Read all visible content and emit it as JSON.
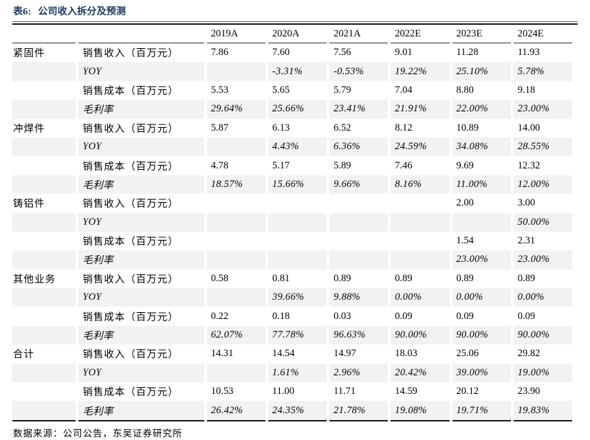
{
  "title": {
    "prefix": "表6:",
    "text": "公司收入拆分及预测",
    "color": "#17365d"
  },
  "footer": {
    "source": "数据来源：公司公告，东吴证券研究所"
  },
  "table": {
    "stripe_color": "#f2f2f2",
    "columns": [
      "2019A",
      "2020A",
      "2021A",
      "2022E",
      "2023E",
      "2024E"
    ],
    "metric_labels": {
      "revenue": "销售收入（百万元）",
      "yoy": "YOY",
      "cost": "销售成本（百万元）",
      "gross_margin": "毛利率"
    },
    "groups": [
      {
        "name": "紧固件",
        "rows": [
          {
            "label": "销售收入（百万元）",
            "italic": false,
            "shaded": false,
            "values": [
              "7.86",
              "7.60",
              "7.56",
              "9.01",
              "11.28",
              "11.93"
            ]
          },
          {
            "label": "YOY",
            "italic": true,
            "shaded": true,
            "values": [
              "",
              "-3.31%",
              "-0.53%",
              "19.22%",
              "25.10%",
              "5.78%"
            ]
          },
          {
            "label": "销售成本（百万元）",
            "italic": false,
            "shaded": false,
            "values": [
              "5.53",
              "5.65",
              "5.79",
              "7.04",
              "8.80",
              "9.18"
            ]
          },
          {
            "label": "毛利率",
            "italic": true,
            "shaded": true,
            "values": [
              "29.64%",
              "25.66%",
              "23.41%",
              "21.91%",
              "22.00%",
              "23.00%"
            ]
          }
        ]
      },
      {
        "name": "冲焊件",
        "rows": [
          {
            "label": "销售收入（百万元）",
            "italic": false,
            "shaded": false,
            "values": [
              "5.87",
              "6.13",
              "6.52",
              "8.12",
              "10.89",
              "14.00"
            ]
          },
          {
            "label": "YOY",
            "italic": true,
            "shaded": true,
            "values": [
              "",
              "4.43%",
              "6.36%",
              "24.59%",
              "34.08%",
              "28.55%"
            ]
          },
          {
            "label": "销售成本（百万元）",
            "italic": false,
            "shaded": false,
            "values": [
              "4.78",
              "5.17",
              "5.89",
              "7.46",
              "9.69",
              "12.32"
            ]
          },
          {
            "label": "毛利率",
            "italic": true,
            "shaded": true,
            "values": [
              "18.57%",
              "15.66%",
              "9.66%",
              "8.16%",
              "11.00%",
              "12.00%"
            ]
          }
        ]
      },
      {
        "name": "铸铝件",
        "rows": [
          {
            "label": "销售收入（百万元）",
            "italic": false,
            "shaded": false,
            "values": [
              "",
              "",
              "",
              "",
              "2.00",
              "3.00"
            ]
          },
          {
            "label": "YOY",
            "italic": true,
            "shaded": true,
            "values": [
              "",
              "",
              "",
              "",
              "",
              "50.00%"
            ]
          },
          {
            "label": "销售成本（百万元）",
            "italic": false,
            "shaded": false,
            "values": [
              "",
              "",
              "",
              "",
              "1.54",
              "2.31"
            ]
          },
          {
            "label": "毛利率",
            "italic": true,
            "shaded": true,
            "values": [
              "",
              "",
              "",
              "",
              "23.00%",
              "23.00%"
            ]
          }
        ]
      },
      {
        "name": "其他业务",
        "rows": [
          {
            "label": "销售收入（百万元）",
            "italic": false,
            "shaded": false,
            "values": [
              "0.58",
              "0.81",
              "0.89",
              "0.89",
              "0.89",
              "0.89"
            ]
          },
          {
            "label": "YOY",
            "italic": true,
            "shaded": true,
            "values": [
              "",
              "39.66%",
              "9.88%",
              "0.00%",
              "0.00%",
              "0.00%"
            ]
          },
          {
            "label": "销售成本（百万元）",
            "italic": false,
            "shaded": false,
            "values": [
              "0.22",
              "0.18",
              "0.03",
              "0.09",
              "0.09",
              "0.09"
            ]
          },
          {
            "label": "毛利率",
            "italic": true,
            "shaded": true,
            "values": [
              "62.07%",
              "77.78%",
              "96.63%",
              "90.00%",
              "90.00%",
              "90.00%"
            ]
          }
        ]
      },
      {
        "name": "合计",
        "rows": [
          {
            "label": "销售收入（百万元）",
            "italic": false,
            "shaded": false,
            "values": [
              "14.31",
              "14.54",
              "14.97",
              "18.03",
              "25.06",
              "29.82"
            ]
          },
          {
            "label": "YOY",
            "italic": true,
            "shaded": true,
            "values": [
              "",
              "1.61%",
              "2.96%",
              "20.42%",
              "39.00%",
              "19.00%"
            ]
          },
          {
            "label": "销售成本（百万元）",
            "italic": false,
            "shaded": false,
            "values": [
              "10.53",
              "11.00",
              "11.71",
              "14.59",
              "20.12",
              "23.90"
            ]
          },
          {
            "label": "毛利率",
            "italic": true,
            "shaded": true,
            "values": [
              "26.42%",
              "24.35%",
              "21.78%",
              "19.08%",
              "19.71%",
              "19.83%"
            ]
          }
        ]
      }
    ]
  }
}
